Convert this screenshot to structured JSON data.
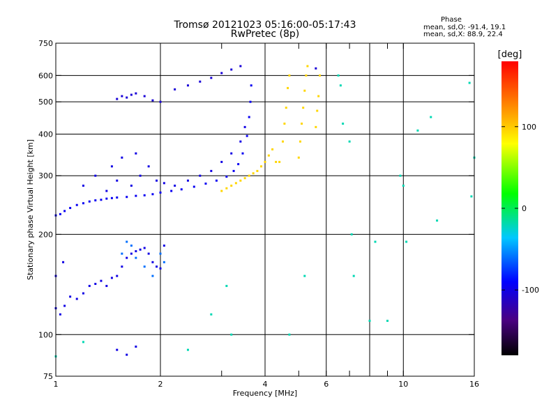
{
  "header": {
    "title": "Tromsø 20121023 05:16:00-05:17:43",
    "subtitle": "RwPretec (8p)"
  },
  "phase_stats": {
    "heading": "Phase",
    "line_o": "mean, sd,O: -91.4, 19.1",
    "line_x": "mean, sd,X:  88.9, 22.4"
  },
  "chart_data": {
    "type": "scatter",
    "title": "Tromsø 20121023 05:16:00-05:17:43",
    "subtitle": "RwPretec (8p)",
    "xlabel": "Frequency [MHz]",
    "ylabel": "Stationary phase Virtual Height [km]",
    "xscale": "log",
    "yscale": "log",
    "xlim": [
      1,
      16
    ],
    "ylim": [
      75,
      750
    ],
    "x_ticks": [
      1,
      2,
      4,
      6,
      10,
      16
    ],
    "x_tick_labels": [
      "1",
      "2",
      "4",
      "6",
      "10",
      "16"
    ],
    "x_minor_ticks": [
      3,
      5,
      7,
      8,
      9
    ],
    "y_ticks": [
      75,
      100,
      200,
      300,
      400,
      500,
      600,
      750
    ],
    "y_tick_labels": [
      "75",
      "100",
      "200",
      "300",
      "400",
      "500",
      "600",
      "750"
    ],
    "grid": true,
    "x_grid": [
      2,
      4,
      6,
      8,
      10
    ],
    "y_grid": [
      100,
      200,
      300,
      400,
      500,
      600
    ],
    "colorbar": {
      "label": "[deg]",
      "range": [
        -180,
        180
      ],
      "ticks": [
        100,
        0,
        -100
      ],
      "tick_labels": [
        "100",
        "0",
        "-100"
      ]
    },
    "series": [
      {
        "role": "O-mode F-layer trace",
        "phase": -95,
        "points": [
          [
            1.0,
            228
          ],
          [
            1.03,
            230
          ],
          [
            1.06,
            235
          ],
          [
            1.1,
            240
          ],
          [
            1.15,
            245
          ],
          [
            1.2,
            248
          ],
          [
            1.25,
            251
          ],
          [
            1.3,
            253
          ],
          [
            1.35,
            254
          ],
          [
            1.4,
            256
          ],
          [
            1.45,
            257
          ],
          [
            1.5,
            258
          ],
          [
            1.6,
            259
          ],
          [
            1.7,
            261
          ],
          [
            1.8,
            262
          ],
          [
            1.9,
            264
          ],
          [
            2.0,
            267
          ],
          [
            2.15,
            270
          ],
          [
            2.3,
            273
          ],
          [
            2.5,
            278
          ],
          [
            2.7,
            284
          ],
          [
            2.9,
            290
          ],
          [
            3.1,
            298
          ],
          [
            3.25,
            310
          ],
          [
            3.35,
            325
          ],
          [
            3.45,
            350
          ],
          [
            3.55,
            395
          ],
          [
            3.6,
            450
          ],
          [
            3.63,
            500
          ],
          [
            3.65,
            560
          ]
        ]
      },
      {
        "role": "O-mode spread echoes",
        "phase": -100,
        "points": [
          [
            1.3,
            300
          ],
          [
            1.45,
            320
          ],
          [
            1.55,
            340
          ],
          [
            1.65,
            280
          ],
          [
            1.75,
            300
          ],
          [
            1.85,
            320
          ],
          [
            1.95,
            290
          ],
          [
            2.05,
            285
          ],
          [
            1.5,
            290
          ],
          [
            1.4,
            270
          ],
          [
            2.2,
            280
          ],
          [
            2.4,
            290
          ],
          [
            2.6,
            300
          ],
          [
            2.8,
            310
          ],
          [
            3.0,
            330
          ],
          [
            3.2,
            350
          ],
          [
            3.4,
            380
          ],
          [
            3.5,
            420
          ],
          [
            1.7,
            350
          ],
          [
            1.2,
            280
          ]
        ]
      },
      {
        "role": "O-mode high echoes",
        "phase": -105,
        "points": [
          [
            1.5,
            510
          ],
          [
            1.55,
            520
          ],
          [
            1.6,
            515
          ],
          [
            1.65,
            525
          ],
          [
            1.7,
            530
          ],
          [
            1.8,
            520
          ],
          [
            1.9,
            505
          ],
          [
            2.0,
            500
          ],
          [
            2.2,
            545
          ],
          [
            2.4,
            560
          ],
          [
            2.6,
            575
          ],
          [
            2.8,
            590
          ],
          [
            3.0,
            610
          ],
          [
            3.2,
            625
          ],
          [
            3.4,
            640
          ],
          [
            5.6,
            630
          ]
        ]
      },
      {
        "role": "O-mode lower echoes",
        "phase": -100,
        "points": [
          [
            1.0,
            120
          ],
          [
            1.03,
            115
          ],
          [
            1.06,
            122
          ],
          [
            1.1,
            130
          ],
          [
            1.15,
            128
          ],
          [
            1.2,
            133
          ],
          [
            1.25,
            140
          ],
          [
            1.3,
            142
          ],
          [
            1.35,
            145
          ],
          [
            1.4,
            140
          ],
          [
            1.45,
            148
          ],
          [
            1.5,
            150
          ],
          [
            1.55,
            160
          ],
          [
            1.6,
            170
          ],
          [
            1.65,
            175
          ],
          [
            1.7,
            178
          ],
          [
            1.75,
            180
          ],
          [
            1.8,
            182
          ],
          [
            1.85,
            175
          ],
          [
            1.9,
            165
          ],
          [
            1.95,
            160
          ],
          [
            2.0,
            158
          ],
          [
            2.05,
            185
          ],
          [
            1.0,
            150
          ],
          [
            1.05,
            165
          ],
          [
            1.5,
            90
          ],
          [
            1.6,
            87
          ],
          [
            1.7,
            92
          ]
        ]
      },
      {
        "role": "O-mode E-region echoes",
        "phase": -60,
        "points": [
          [
            1.6,
            190
          ],
          [
            1.7,
            170
          ],
          [
            1.8,
            160
          ],
          [
            1.9,
            150
          ],
          [
            2.0,
            175
          ],
          [
            2.05,
            165
          ],
          [
            1.65,
            185
          ],
          [
            1.55,
            175
          ]
        ]
      },
      {
        "role": "X-mode trace",
        "phase": 95,
        "points": [
          [
            3.0,
            270
          ],
          [
            3.1,
            275
          ],
          [
            3.2,
            280
          ],
          [
            3.3,
            285
          ],
          [
            3.4,
            290
          ],
          [
            3.5,
            295
          ],
          [
            3.6,
            300
          ],
          [
            3.7,
            305
          ],
          [
            3.8,
            310
          ],
          [
            3.9,
            320
          ],
          [
            4.0,
            330
          ],
          [
            4.1,
            345
          ],
          [
            4.2,
            360
          ],
          [
            4.3,
            330
          ],
          [
            4.4,
            330
          ],
          [
            4.5,
            380
          ],
          [
            4.55,
            430
          ],
          [
            4.6,
            480
          ],
          [
            4.65,
            550
          ],
          [
            4.7,
            600
          ],
          [
            5.0,
            340
          ],
          [
            5.05,
            380
          ],
          [
            5.1,
            430
          ],
          [
            5.15,
            480
          ],
          [
            5.2,
            540
          ],
          [
            5.25,
            600
          ],
          [
            5.3,
            640
          ],
          [
            5.6,
            420
          ],
          [
            5.65,
            470
          ],
          [
            5.7,
            520
          ],
          [
            5.75,
            600
          ]
        ]
      },
      {
        "role": "scattered echoes",
        "phase": -20,
        "points": [
          [
            6.5,
            600
          ],
          [
            6.6,
            560
          ],
          [
            6.7,
            430
          ],
          [
            7.0,
            380
          ],
          [
            7.1,
            200
          ],
          [
            7.2,
            150
          ],
          [
            8.0,
            110
          ],
          [
            8.3,
            190
          ],
          [
            9.0,
            110
          ],
          [
            9.8,
            300
          ],
          [
            10.0,
            280
          ],
          [
            10.2,
            190
          ],
          [
            11.0,
            410
          ],
          [
            12.0,
            450
          ],
          [
            12.5,
            220
          ],
          [
            15.5,
            570
          ],
          [
            15.7,
            260
          ],
          [
            16.0,
            340
          ],
          [
            2.4,
            90
          ],
          [
            3.2,
            100
          ],
          [
            4.7,
            100
          ],
          [
            5.2,
            150
          ],
          [
            3.1,
            140
          ],
          [
            2.8,
            115
          ],
          [
            1.2,
            95
          ],
          [
            1.0,
            86
          ]
        ]
      }
    ]
  }
}
